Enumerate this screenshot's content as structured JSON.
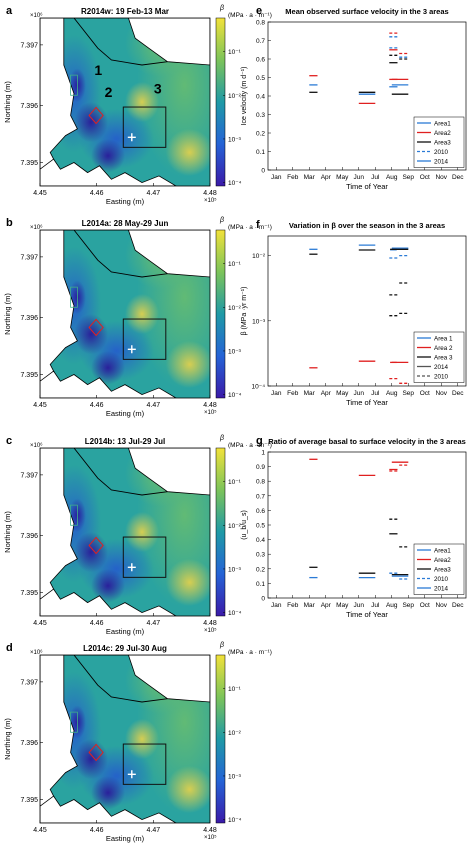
{
  "colors": {
    "area1": "#2b7bd6",
    "area2": "#e02020",
    "area3": "#111111",
    "map_low": "#3a1aa8",
    "map_mid": "#1f9aa6",
    "map_high": "#f2e23a",
    "box_area2": "#e02020",
    "box_area3": "#111111"
  },
  "maps": [
    {
      "panel_letter": "a",
      "title": "R2014w: 19 Feb-13 Mar",
      "beta_symbol": "β",
      "colorbar_units": "(MPa · a · m⁻¹)",
      "colorbar_ticks": [
        "10⁻¹",
        "10⁻²",
        "10⁻³",
        "10⁻⁴"
      ],
      "exponent": "×10⁶",
      "yticks": [
        "7.397",
        "7.396",
        "7.395"
      ],
      "xticks": [
        "4.45",
        "4.46",
        "4.47",
        "4.48"
      ],
      "x_exponent": "×10⁵",
      "xlabel": "Easting (m)",
      "ylabel": "Northing (m)",
      "area_labels": [
        "1",
        "2",
        "3"
      ]
    },
    {
      "panel_letter": "b",
      "title": "L2014a: 28 May-29 Jun",
      "beta_symbol": "β",
      "colorbar_units": "(MPa · a · m⁻¹)",
      "colorbar_ticks": [
        "10⁻¹",
        "10⁻²",
        "10⁻³",
        "10⁻⁴"
      ],
      "exponent": "×10⁶",
      "yticks": [
        "7.397",
        "7.396",
        "7.395"
      ],
      "xticks": [
        "4.45",
        "4.46",
        "4.47",
        "4.48"
      ],
      "x_exponent": "×10⁵",
      "xlabel": "Easting (m)",
      "ylabel": "Northing (m)",
      "area_labels": []
    },
    {
      "panel_letter": "c",
      "title": "L2014b: 13 Jul-29 Jul",
      "beta_symbol": "β",
      "colorbar_units": "(MPa · a · m⁻¹)",
      "colorbar_ticks": [
        "10⁻¹",
        "10⁻²",
        "10⁻³",
        "10⁻⁴"
      ],
      "exponent": "×10⁶",
      "yticks": [
        "7.397",
        "7.396",
        "7.395"
      ],
      "xticks": [
        "4.45",
        "4.46",
        "4.47",
        "4.48"
      ],
      "x_exponent": "×10⁵",
      "xlabel": "Easting (m)",
      "ylabel": "Northing (m)",
      "area_labels": []
    },
    {
      "panel_letter": "d",
      "title": "L2014c: 29 Jul-30 Aug",
      "beta_symbol": "β",
      "colorbar_units": "(MPa · a · m⁻¹)",
      "colorbar_ticks": [
        "10⁻¹",
        "10⁻²",
        "10⁻³",
        "10⁻⁴"
      ],
      "exponent": "×10⁶",
      "yticks": [
        "7.397",
        "7.396",
        "7.395"
      ],
      "xticks": [
        "4.45",
        "4.46",
        "4.47",
        "4.48"
      ],
      "x_exponent": "×10⁵",
      "xlabel": "Easting (m)",
      "ylabel": "Northing (m)",
      "area_labels": []
    }
  ],
  "chart_data": [
    {
      "panel_letter": "e",
      "type": "line",
      "title": "Mean observed surface velocity in the 3 areas",
      "xlabel": "Time of Year",
      "ylabel": "Ice velocity (m d⁻¹)",
      "categories": [
        "Jan",
        "Feb",
        "Mar",
        "Apr",
        "May",
        "Jun",
        "Jul",
        "Aug",
        "Sep",
        "Oct",
        "Nov",
        "Dec"
      ],
      "ylim": [
        0,
        0.8
      ],
      "yscale": "linear",
      "yticks": [
        0,
        0.1,
        0.2,
        0.3,
        0.4,
        0.5,
        0.6,
        0.7,
        0.8
      ],
      "ytick_labels": [
        "0",
        "0.1",
        "0.2",
        "0.3",
        "0.4",
        "0.5",
        "0.6",
        "0.7",
        "0.8"
      ],
      "legend": [
        "Area1",
        "Area2",
        "Area3",
        "2010",
        "2014"
      ],
      "legend_position": "bottom-right",
      "segments": [
        {
          "series": "area2",
          "style": "solid",
          "x0": 3.0,
          "x1": 3.5,
          "y": 0.51
        },
        {
          "series": "area1",
          "style": "solid",
          "x0": 3.0,
          "x1": 3.5,
          "y": 0.46
        },
        {
          "series": "area3",
          "style": "solid",
          "x0": 3.0,
          "x1": 3.5,
          "y": 0.42
        },
        {
          "series": "area3",
          "style": "solid",
          "x0": 6.0,
          "x1": 7.0,
          "y": 0.42
        },
        {
          "series": "area1",
          "style": "solid",
          "x0": 6.0,
          "x1": 7.0,
          "y": 0.41
        },
        {
          "series": "area2",
          "style": "solid",
          "x0": 6.0,
          "x1": 7.0,
          "y": 0.36
        },
        {
          "series": "area2",
          "style": "dashed",
          "x0": 7.85,
          "x1": 8.35,
          "y": 0.74
        },
        {
          "series": "area1",
          "style": "dashed",
          "x0": 7.85,
          "x1": 8.35,
          "y": 0.72
        },
        {
          "series": "area1",
          "style": "dashed",
          "x0": 7.85,
          "x1": 8.35,
          "y": 0.66
        },
        {
          "series": "area3",
          "style": "dashed",
          "x0": 7.85,
          "x1": 8.35,
          "y": 0.62
        },
        {
          "series": "area2",
          "style": "solid",
          "x0": 7.85,
          "x1": 8.35,
          "y": 0.65
        },
        {
          "series": "area3",
          "style": "solid",
          "x0": 7.85,
          "x1": 8.35,
          "y": 0.58
        },
        {
          "series": "area2",
          "style": "solid",
          "x0": 7.85,
          "x1": 8.35,
          "y": 0.49
        },
        {
          "series": "area1",
          "style": "solid",
          "x0": 7.85,
          "x1": 8.35,
          "y": 0.45
        },
        {
          "series": "area2",
          "style": "dashed",
          "x0": 8.45,
          "x1": 8.95,
          "y": 0.63
        },
        {
          "series": "area1",
          "style": "dashed",
          "x0": 8.45,
          "x1": 8.95,
          "y": 0.61
        },
        {
          "series": "area3",
          "style": "dashed",
          "x0": 8.45,
          "x1": 8.95,
          "y": 0.6
        },
        {
          "series": "area2",
          "style": "solid",
          "x0": 8.0,
          "x1": 9.0,
          "y": 0.49
        },
        {
          "series": "area1",
          "style": "solid",
          "x0": 8.0,
          "x1": 9.0,
          "y": 0.46
        },
        {
          "series": "area3",
          "style": "solid",
          "x0": 8.0,
          "x1": 9.0,
          "y": 0.41
        }
      ]
    },
    {
      "panel_letter": "f",
      "type": "line",
      "title": "Variation in β over the season in the 3 areas",
      "xlabel": "Time of Year",
      "ylabel": "β (MPa ·yr m⁻¹)",
      "categories": [
        "Jan",
        "Feb",
        "Mar",
        "Apr",
        "May",
        "Jun",
        "Jul",
        "Aug",
        "Sep",
        "Oct",
        "Nov",
        "Dec"
      ],
      "ylim": [
        0.0001,
        0.02
      ],
      "yscale": "log",
      "yticks": [
        0.0001,
        0.001,
        0.01
      ],
      "ytick_labels": [
        "10⁻⁴",
        "10⁻³",
        "10⁻²"
      ],
      "legend": [
        "Area 1",
        "Area 2",
        "Area 3",
        "2014",
        "2010"
      ],
      "legend_position": "bottom-right",
      "segments": [
        {
          "series": "area1",
          "style": "solid",
          "x0": 3.0,
          "x1": 3.5,
          "y": 0.0125
        },
        {
          "series": "area3",
          "style": "solid",
          "x0": 3.0,
          "x1": 3.5,
          "y": 0.0105
        },
        {
          "series": "area2",
          "style": "solid",
          "x0": 3.0,
          "x1": 3.5,
          "y": 0.00019
        },
        {
          "series": "area1",
          "style": "solid",
          "x0": 6.0,
          "x1": 7.0,
          "y": 0.0145
        },
        {
          "series": "area3",
          "style": "solid",
          "x0": 6.0,
          "x1": 7.0,
          "y": 0.0122
        },
        {
          "series": "area2",
          "style": "solid",
          "x0": 6.0,
          "x1": 7.0,
          "y": 0.00024
        },
        {
          "series": "area1",
          "style": "solid",
          "x0": 7.9,
          "x1": 8.3,
          "y": 0.0123
        },
        {
          "series": "area3",
          "style": "solid",
          "x0": 7.9,
          "x1": 8.3,
          "y": 0.0125
        },
        {
          "series": "area1",
          "style": "dashed",
          "x0": 7.85,
          "x1": 8.35,
          "y": 0.0092
        },
        {
          "series": "area3",
          "style": "dashed",
          "x0": 7.85,
          "x1": 8.35,
          "y": 0.0025
        },
        {
          "series": "area3",
          "style": "dashed",
          "x0": 7.85,
          "x1": 8.35,
          "y": 0.0012
        },
        {
          "series": "area2",
          "style": "dashed",
          "x0": 7.85,
          "x1": 8.35,
          "y": 0.00013
        },
        {
          "series": "area2",
          "style": "solid",
          "x0": 7.9,
          "x1": 8.3,
          "y": 0.00023
        },
        {
          "series": "area1",
          "style": "solid",
          "x0": 8.0,
          "x1": 9.0,
          "y": 0.013
        },
        {
          "series": "area3",
          "style": "solid",
          "x0": 8.0,
          "x1": 9.0,
          "y": 0.0125
        },
        {
          "series": "area1",
          "style": "dashed",
          "x0": 8.45,
          "x1": 8.95,
          "y": 0.01
        },
        {
          "series": "area3",
          "style": "dashed",
          "x0": 8.45,
          "x1": 8.95,
          "y": 0.0038
        },
        {
          "series": "area3",
          "style": "dashed",
          "x0": 8.45,
          "x1": 8.95,
          "y": 0.0013
        },
        {
          "series": "area2",
          "style": "solid",
          "x0": 8.0,
          "x1": 9.0,
          "y": 0.00023
        },
        {
          "series": "area2",
          "style": "dashed",
          "x0": 8.45,
          "x1": 8.95,
          "y": 0.00011
        }
      ]
    },
    {
      "panel_letter": "g",
      "type": "line",
      "title": "Ratio of average basal to surface velocity in the 3 areas",
      "xlabel": "Time of Year",
      "ylabel": "(u_b/u_s)",
      "categories": [
        "Jan",
        "Feb",
        "Mar",
        "Apr",
        "May",
        "Jun",
        "Jul",
        "Aug",
        "Sep",
        "Oct",
        "Nov",
        "Dec"
      ],
      "ylim": [
        0,
        1
      ],
      "yscale": "linear",
      "yticks": [
        0,
        0.1,
        0.2,
        0.3,
        0.4,
        0.5,
        0.6,
        0.7,
        0.8,
        0.9,
        1
      ],
      "ytick_labels": [
        "0",
        "0.1",
        "0.2",
        "0.3",
        "0.4",
        "0.5",
        "0.6",
        "0.7",
        "0.8",
        "0.9",
        "1"
      ],
      "legend": [
        "Area1",
        "Area2",
        "Area3",
        "2010",
        "2014"
      ],
      "legend_position": "bottom-right",
      "segments": [
        {
          "series": "area2",
          "style": "solid",
          "x0": 3.0,
          "x1": 3.5,
          "y": 0.95
        },
        {
          "series": "area3",
          "style": "solid",
          "x0": 3.0,
          "x1": 3.5,
          "y": 0.21
        },
        {
          "series": "area1",
          "style": "solid",
          "x0": 3.0,
          "x1": 3.5,
          "y": 0.14
        },
        {
          "series": "area2",
          "style": "solid",
          "x0": 6.0,
          "x1": 7.0,
          "y": 0.84
        },
        {
          "series": "area3",
          "style": "solid",
          "x0": 6.0,
          "x1": 7.0,
          "y": 0.17
        },
        {
          "series": "area1",
          "style": "solid",
          "x0": 6.0,
          "x1": 7.0,
          "y": 0.14
        },
        {
          "series": "area2",
          "style": "dashed",
          "x0": 7.85,
          "x1": 8.35,
          "y": 0.87
        },
        {
          "series": "area2",
          "style": "solid",
          "x0": 7.85,
          "x1": 8.35,
          "y": 0.88
        },
        {
          "series": "area3",
          "style": "dashed",
          "x0": 7.85,
          "x1": 8.35,
          "y": 0.54
        },
        {
          "series": "area3",
          "style": "solid",
          "x0": 7.85,
          "x1": 8.35,
          "y": 0.44
        },
        {
          "series": "area1",
          "style": "dashed",
          "x0": 7.85,
          "x1": 8.35,
          "y": 0.17
        },
        {
          "series": "area2",
          "style": "solid",
          "x0": 8.0,
          "x1": 9.0,
          "y": 0.93
        },
        {
          "series": "area2",
          "style": "dashed",
          "x0": 8.45,
          "x1": 8.95,
          "y": 0.91
        },
        {
          "series": "area3",
          "style": "dashed",
          "x0": 8.45,
          "x1": 8.95,
          "y": 0.35
        },
        {
          "series": "area3",
          "style": "solid",
          "x0": 8.0,
          "x1": 9.0,
          "y": 0.16
        },
        {
          "series": "area1",
          "style": "solid",
          "x0": 8.0,
          "x1": 9.0,
          "y": 0.15
        },
        {
          "series": "area1",
          "style": "dashed",
          "x0": 8.45,
          "x1": 8.95,
          "y": 0.13
        }
      ]
    }
  ]
}
